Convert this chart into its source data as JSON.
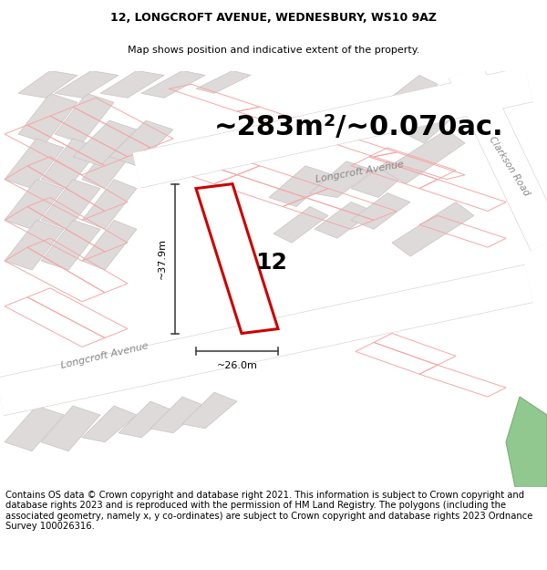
{
  "title": "12, LONGCROFT AVENUE, WEDNESBURY, WS10 9AZ",
  "subtitle": "Map shows position and indicative extent of the property.",
  "area_text": "~283m²/~0.070ac.",
  "property_number": "12",
  "dim_width": "~26.0m",
  "dim_height": "~37.9m",
  "map_bg": "#f7f4f4",
  "plot_color": "#cc0000",
  "road_label_lower": "Longcroft Avenue",
  "road_label_upper": "Longcroft Avenue",
  "road_label_right": "Clarkson Road",
  "footer_text": "Contains OS data © Crown copyright and database right 2021. This information is subject to Crown copyright and database rights 2023 and is reproduced with the permission of HM Land Registry. The polygons (including the associated geometry, namely x, y co-ordinates) are subject to Crown copyright and database rights 2023 Ordnance Survey 100026316.",
  "title_fontsize": 9,
  "subtitle_fontsize": 8,
  "area_fontsize": 22,
  "footer_fontsize": 7.2,
  "building_color": "#dedad9",
  "building_edge": "#c8c3c2",
  "parcel_color": "#f2a8a8",
  "road_color": "#f0eaea",
  "road_edge": "#ddd5d5"
}
